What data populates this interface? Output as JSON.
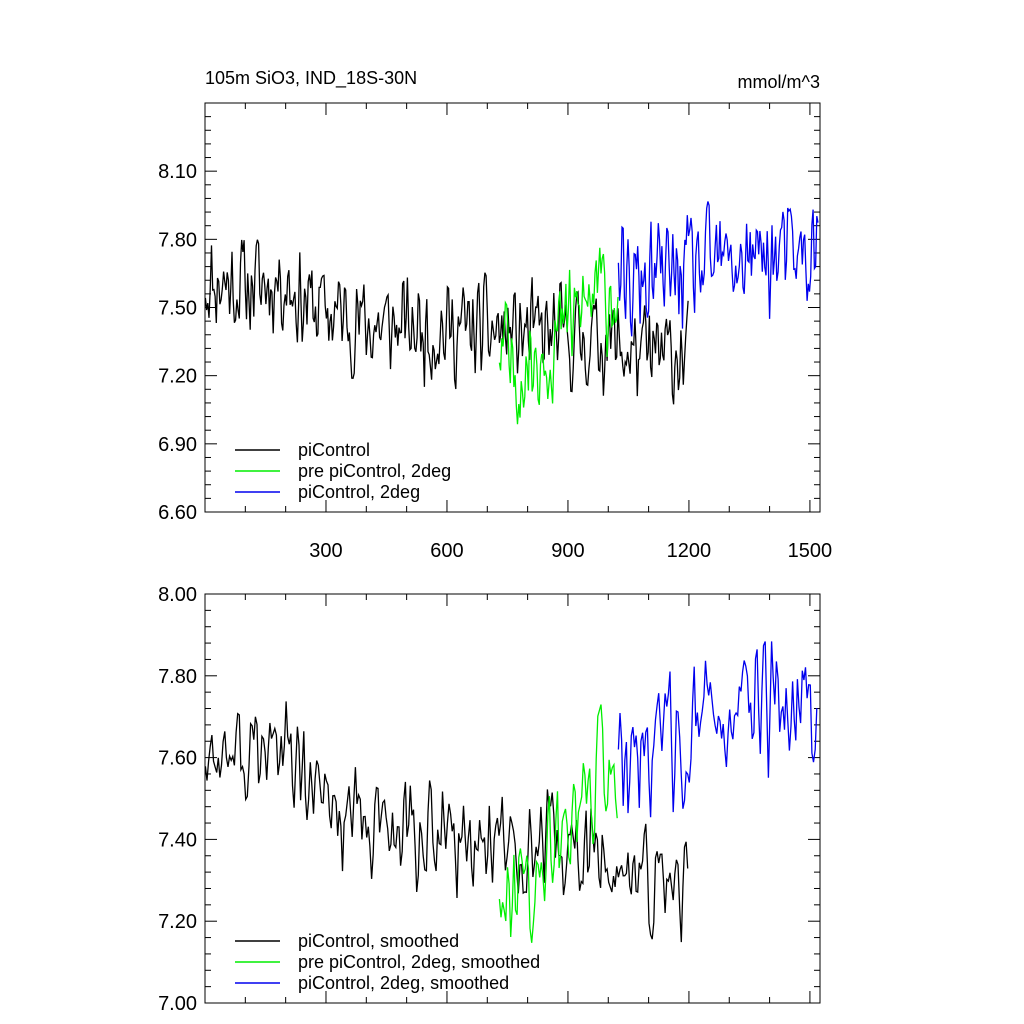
{
  "chart_data": [
    {
      "type": "line",
      "title": "105m SiO3, IND_18S-30N",
      "units": "mmol/m^3",
      "xlim": [
        0,
        1525
      ],
      "ylim": [
        6.6,
        8.4
      ],
      "x_ticks": [
        300,
        600,
        900,
        1200,
        1500
      ],
      "x_tick_labels": [
        "300",
        "600",
        "900",
        "1200",
        "1500"
      ],
      "y_ticks": [
        6.6,
        6.9,
        7.2,
        7.5,
        7.8,
        8.1
      ],
      "y_tick_labels": [
        "6.60",
        "6.90",
        "7.20",
        "7.50",
        "7.80",
        "8.10"
      ],
      "legend_position": "bottom-left",
      "series": [
        {
          "name": "piControl",
          "color": "#000000",
          "x_range": [
            1,
            1200
          ],
          "level_points": [
            [
              1,
              7.62
            ],
            [
              100,
              7.6
            ],
            [
              200,
              7.62
            ],
            [
              250,
              7.52
            ],
            [
              400,
              7.42
            ],
            [
              600,
              7.4
            ],
            [
              700,
              7.4
            ],
            [
              800,
              7.38
            ],
            [
              900,
              7.36
            ],
            [
              1000,
              7.36
            ],
            [
              1050,
              7.3
            ],
            [
              1100,
              7.28
            ],
            [
              1200,
              7.3
            ]
          ],
          "noise_amplitude": 0.17
        },
        {
          "name": "pre piControl, 2deg",
          "color": "#00ee00",
          "x_range": [
            730,
            1025
          ],
          "level_points": [
            [
              730,
              7.3
            ],
            [
              780,
              7.22
            ],
            [
              830,
              7.3
            ],
            [
              900,
              7.42
            ],
            [
              960,
              7.55
            ],
            [
              1025,
              7.58
            ]
          ],
          "noise_amplitude": 0.19
        },
        {
          "name": "piControl, 2deg",
          "color": "#0000ee",
          "x_range": [
            1025,
            1520
          ],
          "level_points": [
            [
              1025,
              7.55
            ],
            [
              1100,
              7.62
            ],
            [
              1200,
              7.66
            ],
            [
              1300,
              7.7
            ],
            [
              1400,
              7.72
            ],
            [
              1520,
              7.72
            ]
          ],
          "noise_amplitude": 0.19
        }
      ]
    },
    {
      "type": "line",
      "title": "",
      "xlim": [
        0,
        1525
      ],
      "ylim": [
        7.0,
        8.0
      ],
      "x_ticks": [
        300,
        600,
        900,
        1200,
        1500
      ],
      "x_tick_labels": [],
      "y_ticks": [
        7.0,
        7.2,
        7.4,
        7.6,
        7.8,
        8.0
      ],
      "y_tick_labels": [
        "7.00",
        "7.20",
        "7.40",
        "7.60",
        "7.80",
        "8.00"
      ],
      "legend_position": "bottom-left",
      "series": [
        {
          "name": "piControl, smoothed",
          "color": "#000000",
          "x_range": [
            1,
            1200
          ],
          "level_points": [
            [
              1,
              7.62
            ],
            [
              100,
              7.6
            ],
            [
              200,
              7.62
            ],
            [
              250,
              7.52
            ],
            [
              400,
              7.42
            ],
            [
              600,
              7.4
            ],
            [
              700,
              7.4
            ],
            [
              800,
              7.38
            ],
            [
              900,
              7.36
            ],
            [
              1000,
              7.36
            ],
            [
              1050,
              7.3
            ],
            [
              1100,
              7.28
            ],
            [
              1200,
              7.3
            ]
          ],
          "noise_amplitude": 0.1
        },
        {
          "name": "pre piControl, 2deg, smoothed",
          "color": "#00ee00",
          "x_range": [
            730,
            1025
          ],
          "level_points": [
            [
              730,
              7.3
            ],
            [
              780,
              7.22
            ],
            [
              830,
              7.3
            ],
            [
              900,
              7.42
            ],
            [
              960,
              7.55
            ],
            [
              1025,
              7.58
            ]
          ],
          "noise_amplitude": 0.12
        },
        {
          "name": "piControl, 2deg, smoothed",
          "color": "#0000ee",
          "x_range": [
            1025,
            1520
          ],
          "level_points": [
            [
              1025,
              7.55
            ],
            [
              1100,
              7.62
            ],
            [
              1200,
              7.66
            ],
            [
              1300,
              7.7
            ],
            [
              1400,
              7.72
            ],
            [
              1520,
              7.72
            ]
          ],
          "noise_amplitude": 0.12
        }
      ]
    }
  ]
}
